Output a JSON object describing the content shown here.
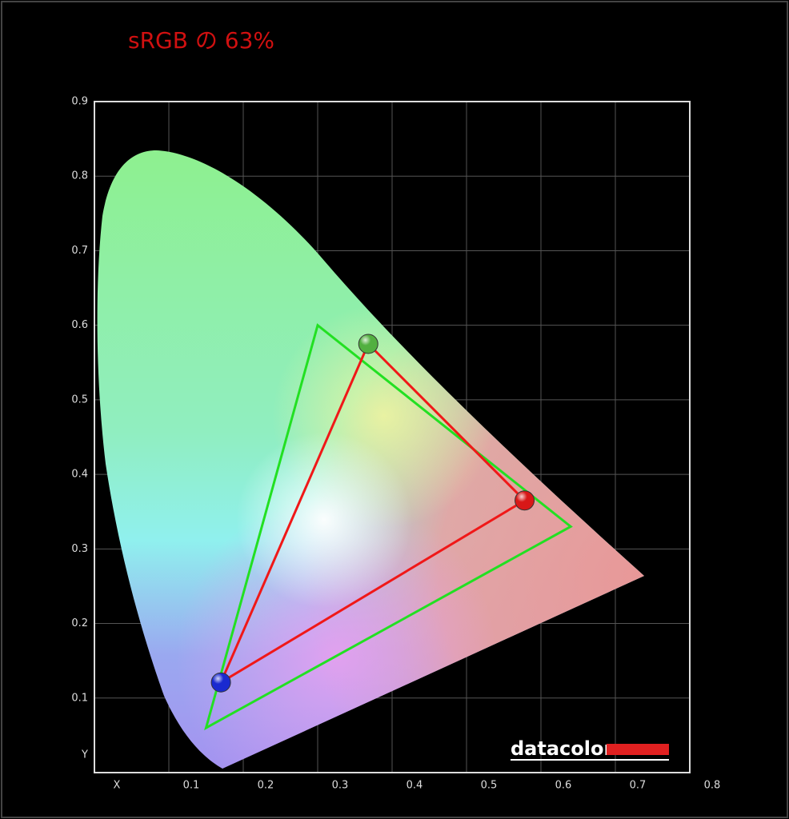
{
  "chart_data": {
    "type": "gamut",
    "title": "sRGB の 63%",
    "logo": "datacolor",
    "xlim": [
      0,
      0.8
    ],
    "ylim": [
      0,
      0.9
    ],
    "xticks": [
      {
        "value": 0,
        "label": "X"
      },
      0.1,
      0.2,
      0.3,
      0.4,
      0.5,
      0.6,
      0.7,
      0.8
    ],
    "yticks": [
      {
        "value": 0,
        "label": "Y"
      },
      0.1,
      0.2,
      0.3,
      0.4,
      0.5,
      0.6,
      0.7,
      0.8,
      0.9
    ],
    "grid": true,
    "series": [
      {
        "color": "#22e022",
        "x": [
          0.64,
          0.3,
          0.15
        ],
        "y": [
          0.33,
          0.6,
          0.06
        ]
      },
      {
        "color": "#f01818",
        "x": [
          0.578,
          0.368,
          0.17
        ],
        "y": [
          0.365,
          0.575,
          0.121
        ],
        "marker_colors": [
          "#d81818",
          "#52b040",
          "#1a2ad0"
        ]
      }
    ]
  }
}
